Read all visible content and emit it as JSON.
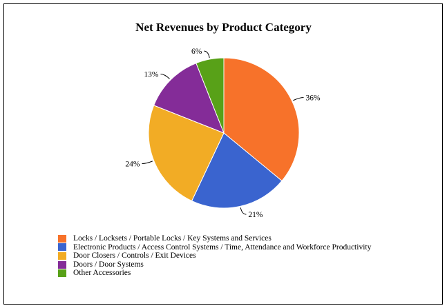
{
  "chart_data": {
    "type": "pie",
    "title": "Net Revenues by Product Category",
    "slices": [
      {
        "label": "Locks / Locksets / Portable Locks / Key Systems and Services",
        "value": 36,
        "display": "36%",
        "color": "#f7722a"
      },
      {
        "label": "Electronic Products / Access Control Systems / Time, Attendance and Workforce Productivity",
        "value": 21,
        "display": "21%",
        "color": "#3a64cf"
      },
      {
        "label": "Door Closers / Controls / Exit Devices",
        "value": 24,
        "display": "24%",
        "color": "#f2ac25"
      },
      {
        "label": "Doors / Door Systems",
        "value": 13,
        "display": "13%",
        "color": "#842c98"
      },
      {
        "label": "Other Accessories",
        "value": 6,
        "display": "6%",
        "color": "#58a118"
      }
    ],
    "start": "top",
    "direction": "clockwise"
  }
}
